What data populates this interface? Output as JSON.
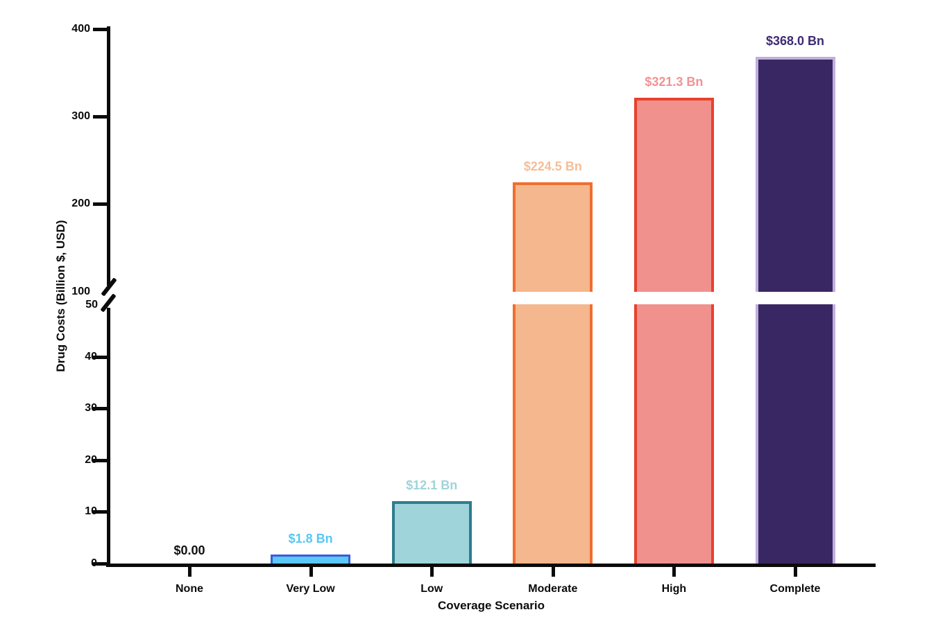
{
  "chart_data": {
    "type": "bar",
    "title": "",
    "xlabel": "Coverage Scenario",
    "ylabel": "Drug Costs (Billion $, USD)",
    "categories": [
      "None",
      "Very Low",
      "Low",
      "Moderate",
      "High",
      "Complete"
    ],
    "values": [
      0,
      1.8,
      12.1,
      224.5,
      321.3,
      368.0
    ],
    "value_labels": [
      "$0.00",
      "$1.8 Bn",
      "$12.1 Bn",
      "$224.5 Bn",
      "$321.3 Bn",
      "$368.0 Bn"
    ],
    "bar_fill_colors": [
      "none",
      "#5BC8F7",
      "#9ED4DA",
      "#F5B78E",
      "#F0918E",
      "#392763"
    ],
    "bar_border_colors": [
      "none",
      "#3A5BDC",
      "#2E7D8D",
      "#F06E2F",
      "#E8412D",
      "#C0AEDC"
    ],
    "bar_border_widths": [
      0,
      3,
      4,
      4,
      4,
      4
    ],
    "value_label_colors": [
      "#111111",
      "#55C7F6",
      "#9ED4DA",
      "#F6BD95",
      "#F29294",
      "#3D2B72"
    ],
    "axis_color": "#0b0b0b",
    "background_color": "#ffffff",
    "grid": false,
    "legend": null,
    "y_axis_break": {
      "lower_max": 50,
      "upper_min": 100
    },
    "y_ticks_lower": [
      0,
      10,
      20,
      30,
      40,
      50
    ],
    "y_ticks_upper": [
      100,
      200,
      300,
      400
    ],
    "ylim_lower_segment": [
      0,
      50
    ],
    "ylim_upper_segment": [
      100,
      400
    ]
  }
}
